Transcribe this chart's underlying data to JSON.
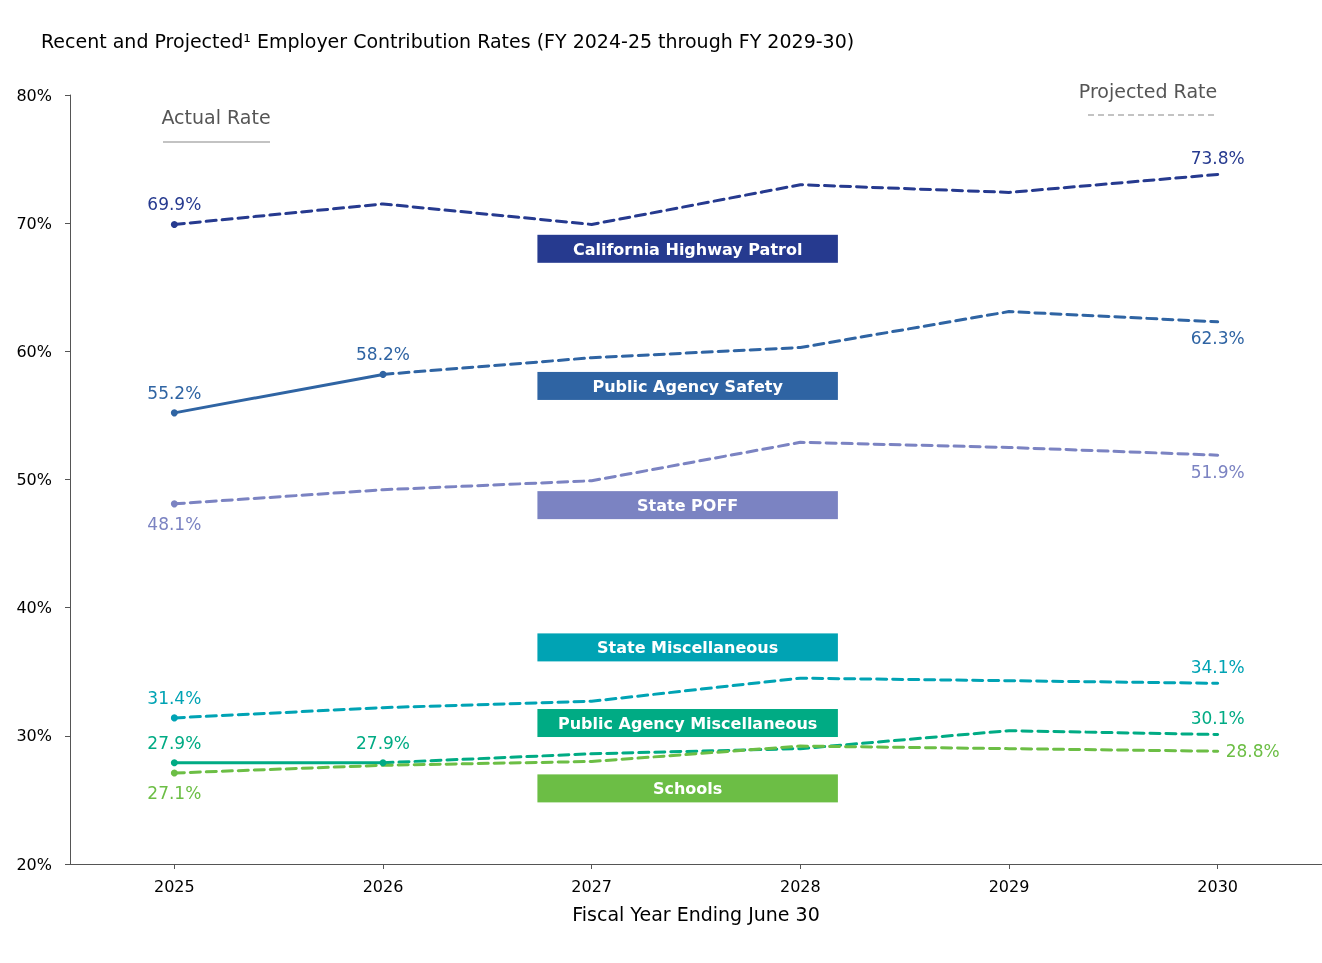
{
  "chart_data": {
    "type": "line",
    "title": "Recent and Projected¹ Employer Contribution Rates (FY 2024-25 through FY 2029-30)",
    "xlabel": "Fiscal Year Ending June 30",
    "x": [
      2025,
      2026,
      2027,
      2028,
      2029,
      2030
    ],
    "xlim": [
      2024.5,
      2030.5
    ],
    "xticks": [
      2025,
      2026,
      2027,
      2028,
      2029,
      2030
    ],
    "ylim": [
      20,
      80
    ],
    "yticks": [
      {
        "value": 20,
        "label": "20%"
      },
      {
        "value": 30,
        "label": "30%"
      },
      {
        "value": 40,
        "label": "40%"
      },
      {
        "value": 50,
        "label": "50%"
      },
      {
        "value": 60,
        "label": "60%"
      },
      {
        "value": 70,
        "label": "70%"
      },
      {
        "value": 80,
        "label": "80%"
      }
    ],
    "grid": false,
    "legend": false,
    "annotations": [
      "Actual Rate",
      "Projected Rate"
    ],
    "series": [
      {
        "color": "#263a8f",
        "line_style": "solid",
        "marker": "circle",
        "values": [
          69.9,
          null,
          null,
          null,
          null,
          null
        ],
        "value_labels": [
          "69.9%",
          null,
          null,
          null,
          null,
          null
        ]
      },
      {
        "name": "California Highway Patrol",
        "color": "#263a8f",
        "line_style": "dashed",
        "marker": "none",
        "values": [
          69.9,
          71.5,
          69.9,
          73.0,
          72.4,
          73.8
        ],
        "value_labels": [
          null,
          null,
          null,
          null,
          null,
          "73.8%"
        ]
      },
      {
        "color": "#2f64a3",
        "line_style": "solid",
        "marker": "circle",
        "values": [
          55.2,
          58.2,
          null,
          null,
          null,
          null
        ],
        "value_labels": [
          "55.2%",
          "58.2%",
          null,
          null,
          null,
          null
        ]
      },
      {
        "name": "Public Agency Safety",
        "color": "#2f64a3",
        "line_style": "dashed",
        "marker": "none",
        "values": [
          null,
          58.2,
          59.5,
          60.3,
          63.1,
          62.3
        ],
        "value_labels": [
          null,
          null,
          null,
          null,
          null,
          "62.3%"
        ]
      },
      {
        "color": "#7b83c2",
        "line_style": "solid",
        "marker": "circle",
        "values": [
          48.1,
          null,
          null,
          null,
          null,
          null
        ],
        "value_labels": [
          "48.1%",
          null,
          null,
          null,
          null,
          null
        ]
      },
      {
        "name": "State POFF",
        "color": "#7b83c2",
        "line_style": "dashed",
        "marker": "none",
        "values": [
          48.1,
          49.2,
          49.9,
          52.9,
          52.5,
          51.9
        ],
        "value_labels": [
          null,
          null,
          null,
          null,
          null,
          "51.9%"
        ]
      },
      {
        "color": "#00a3b4",
        "line_style": "solid",
        "marker": "circle",
        "values": [
          31.4,
          null,
          null,
          null,
          null,
          null
        ],
        "value_labels": [
          "31.4%",
          null,
          null,
          null,
          null,
          null
        ]
      },
      {
        "name": "State Miscellaneous",
        "color": "#00a3b4",
        "line_style": "dashed",
        "marker": "none",
        "values": [
          31.4,
          32.2,
          32.7,
          34.5,
          34.3,
          34.1
        ],
        "value_labels": [
          null,
          null,
          null,
          null,
          null,
          "34.1%"
        ]
      },
      {
        "color": "#00ab84",
        "line_style": "solid",
        "marker": "circle",
        "values": [
          27.9,
          27.9,
          null,
          null,
          null,
          null
        ],
        "value_labels": [
          "27.9%",
          "27.9%",
          null,
          null,
          null,
          null
        ]
      },
      {
        "name": "Public Agency Miscellaneous",
        "color": "#00ab84",
        "line_style": "dashed",
        "marker": "none",
        "values": [
          null,
          27.9,
          28.6,
          29.0,
          30.4,
          30.1
        ],
        "value_labels": [
          null,
          null,
          null,
          null,
          null,
          "30.1%"
        ]
      },
      {
        "color": "#6cbe45",
        "line_style": "solid",
        "marker": "circle",
        "values": [
          27.1,
          null,
          null,
          null,
          null,
          null
        ],
        "value_labels": [
          "27.1%",
          null,
          null,
          null,
          null,
          null
        ]
      },
      {
        "name": "Schools",
        "color": "#6cbe45",
        "line_style": "dashed",
        "marker": "none",
        "values": [
          27.1,
          27.7,
          28.0,
          29.2,
          29.0,
          28.8
        ],
        "value_labels": [
          null,
          null,
          null,
          null,
          null,
          "28.8%"
        ]
      }
    ]
  }
}
